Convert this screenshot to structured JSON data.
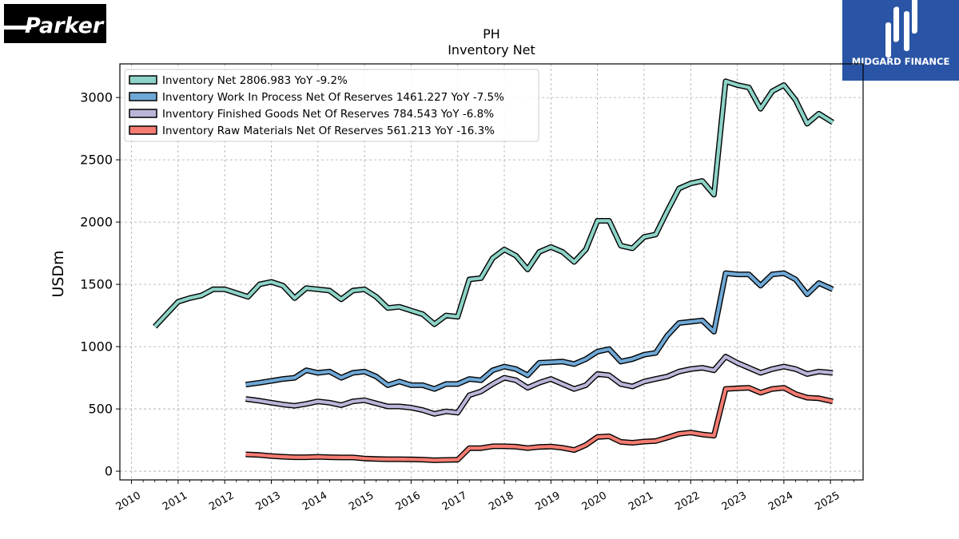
{
  "logos": {
    "left_text": "Parker",
    "right_text": "MIDGARD FINANCE"
  },
  "chart_data": {
    "type": "line",
    "title": "PH",
    "subtitle": "Inventory Net",
    "xlabel": "",
    "ylabel": "USDm",
    "xlim": [
      2009.75,
      2025.7
    ],
    "ylim": [
      -70,
      3270
    ],
    "yticks": [
      0,
      500,
      1000,
      1500,
      2000,
      2500,
      3000
    ],
    "xticks": [
      "2010",
      "2011",
      "2012",
      "2013",
      "2014",
      "2015",
      "2016",
      "2017",
      "2018",
      "2019",
      "2020",
      "2021",
      "2022",
      "2023",
      "2024",
      "2025"
    ],
    "grid": true,
    "legend_position": "top-left",
    "series": [
      {
        "name": "Inventory Net",
        "legend_label": "Inventory Net  2806.983 YoY -9.2%",
        "color": "#8dd3c7",
        "x": [
          2010.5,
          2011.0,
          2011.25,
          2011.5,
          2011.75,
          2012.0,
          2012.25,
          2012.5,
          2012.75,
          2013.0,
          2013.25,
          2013.5,
          2013.75,
          2014.0,
          2014.25,
          2014.5,
          2014.75,
          2015.0,
          2015.25,
          2015.5,
          2015.75,
          2016.0,
          2016.25,
          2016.5,
          2016.75,
          2017.0,
          2017.25,
          2017.5,
          2017.75,
          2018.0,
          2018.25,
          2018.5,
          2018.75,
          2019.0,
          2019.25,
          2019.5,
          2019.75,
          2020.0,
          2020.25,
          2020.5,
          2020.75,
          2021.0,
          2021.25,
          2021.5,
          2021.75,
          2022.0,
          2022.25,
          2022.5,
          2022.75,
          2023.0,
          2023.25,
          2023.5,
          2023.75,
          2024.0,
          2024.25,
          2024.5,
          2024.75,
          2025.05
        ],
        "y": [
          1160,
          1360,
          1390,
          1410,
          1460,
          1460,
          1430,
          1400,
          1500,
          1520,
          1490,
          1390,
          1470,
          1460,
          1450,
          1380,
          1450,
          1460,
          1400,
          1310,
          1320,
          1290,
          1260,
          1180,
          1250,
          1240,
          1540,
          1550,
          1710,
          1780,
          1730,
          1620,
          1760,
          1800,
          1760,
          1680,
          1780,
          2010,
          2010,
          1810,
          1790,
          1880,
          1900,
          2090,
          2270,
          2310,
          2330,
          2220,
          3130,
          3100,
          3080,
          2910,
          3050,
          3100,
          2980,
          2790,
          2870,
          2800
        ]
      },
      {
        "name": "Inventory Work In Process Net Of Reserves",
        "legend_label": "Inventory Work In Process Net Of Reserves  1461.227 YoY -7.5%",
        "color": "#6fa8d6",
        "x": [
          2012.45,
          2012.75,
          2013.0,
          2013.25,
          2013.5,
          2013.75,
          2014.0,
          2014.25,
          2014.5,
          2014.75,
          2015.0,
          2015.25,
          2015.5,
          2015.75,
          2016.0,
          2016.25,
          2016.5,
          2016.75,
          2017.0,
          2017.25,
          2017.5,
          2017.75,
          2018.0,
          2018.25,
          2018.5,
          2018.75,
          2019.0,
          2019.25,
          2019.5,
          2019.75,
          2020.0,
          2020.25,
          2020.5,
          2020.75,
          2021.0,
          2021.25,
          2021.5,
          2021.75,
          2022.0,
          2022.25,
          2022.5,
          2022.75,
          2023.0,
          2023.25,
          2023.5,
          2023.75,
          2024.0,
          2024.25,
          2024.5,
          2024.75,
          2025.05
        ],
        "y": [
          695,
          710,
          725,
          740,
          750,
          810,
          790,
          800,
          750,
          790,
          800,
          760,
          690,
          720,
          690,
          690,
          660,
          700,
          700,
          740,
          730,
          810,
          840,
          820,
          770,
          870,
          875,
          880,
          860,
          900,
          960,
          980,
          880,
          900,
          935,
          950,
          1090,
          1190,
          1200,
          1210,
          1120,
          1590,
          1580,
          1580,
          1490,
          1580,
          1590,
          1540,
          1420,
          1510,
          1460
        ]
      },
      {
        "name": "Inventory Finished Goods Net Of Reserves",
        "legend_label": "Inventory Finished Goods Net Of Reserves  784.543 YoY -6.8%",
        "color": "#bcb5d9",
        "x": [
          2012.45,
          2012.75,
          2013.0,
          2013.25,
          2013.5,
          2013.75,
          2014.0,
          2014.25,
          2014.5,
          2014.75,
          2015.0,
          2015.25,
          2015.5,
          2015.75,
          2016.0,
          2016.25,
          2016.5,
          2016.75,
          2017.0,
          2017.25,
          2017.5,
          2017.75,
          2018.0,
          2018.25,
          2018.5,
          2018.75,
          2019.0,
          2019.25,
          2019.5,
          2019.75,
          2020.0,
          2020.25,
          2020.5,
          2020.75,
          2021.0,
          2021.25,
          2021.5,
          2021.75,
          2022.0,
          2022.25,
          2022.5,
          2022.75,
          2023.0,
          2023.25,
          2023.5,
          2023.75,
          2024.0,
          2024.25,
          2024.5,
          2024.75,
          2025.05
        ],
        "y": [
          580,
          565,
          550,
          535,
          525,
          540,
          560,
          550,
          530,
          560,
          570,
          545,
          520,
          520,
          510,
          490,
          460,
          480,
          470,
          610,
          640,
          700,
          750,
          730,
          670,
          710,
          740,
          700,
          660,
          690,
          780,
          770,
          700,
          680,
          720,
          740,
          760,
          800,
          820,
          830,
          810,
          920,
          870,
          830,
          790,
          820,
          840,
          820,
          780,
          800,
          790
        ]
      },
      {
        "name": "Inventory Raw Materials Net Of Reserves",
        "legend_label": "Inventory Raw Materials Net Of Reserves  561.213 YoY -16.3%",
        "color": "#f47c72",
        "x": [
          2012.45,
          2012.75,
          2013.0,
          2013.25,
          2013.5,
          2013.75,
          2014.0,
          2014.25,
          2014.5,
          2014.75,
          2015.0,
          2015.25,
          2015.5,
          2015.75,
          2016.0,
          2016.25,
          2016.5,
          2016.75,
          2017.0,
          2017.25,
          2017.5,
          2017.75,
          2018.0,
          2018.25,
          2018.5,
          2018.75,
          2019.0,
          2019.25,
          2019.5,
          2019.75,
          2020.0,
          2020.25,
          2020.5,
          2020.75,
          2021.0,
          2021.25,
          2021.5,
          2021.75,
          2022.0,
          2022.25,
          2022.5,
          2022.75,
          2023.0,
          2023.25,
          2023.5,
          2023.75,
          2024.0,
          2024.25,
          2024.5,
          2024.75,
          2025.05
        ],
        "y": [
          135,
          130,
          122,
          116,
          112,
          112,
          115,
          112,
          110,
          110,
          102,
          98,
          96,
          96,
          95,
          93,
          88,
          90,
          92,
          185,
          185,
          200,
          200,
          197,
          185,
          195,
          198,
          188,
          170,
          210,
          275,
          280,
          235,
          228,
          238,
          242,
          270,
          300,
          310,
          295,
          285,
          660,
          665,
          670,
          630,
          660,
          670,
          620,
          590,
          585,
          560
        ]
      }
    ]
  }
}
